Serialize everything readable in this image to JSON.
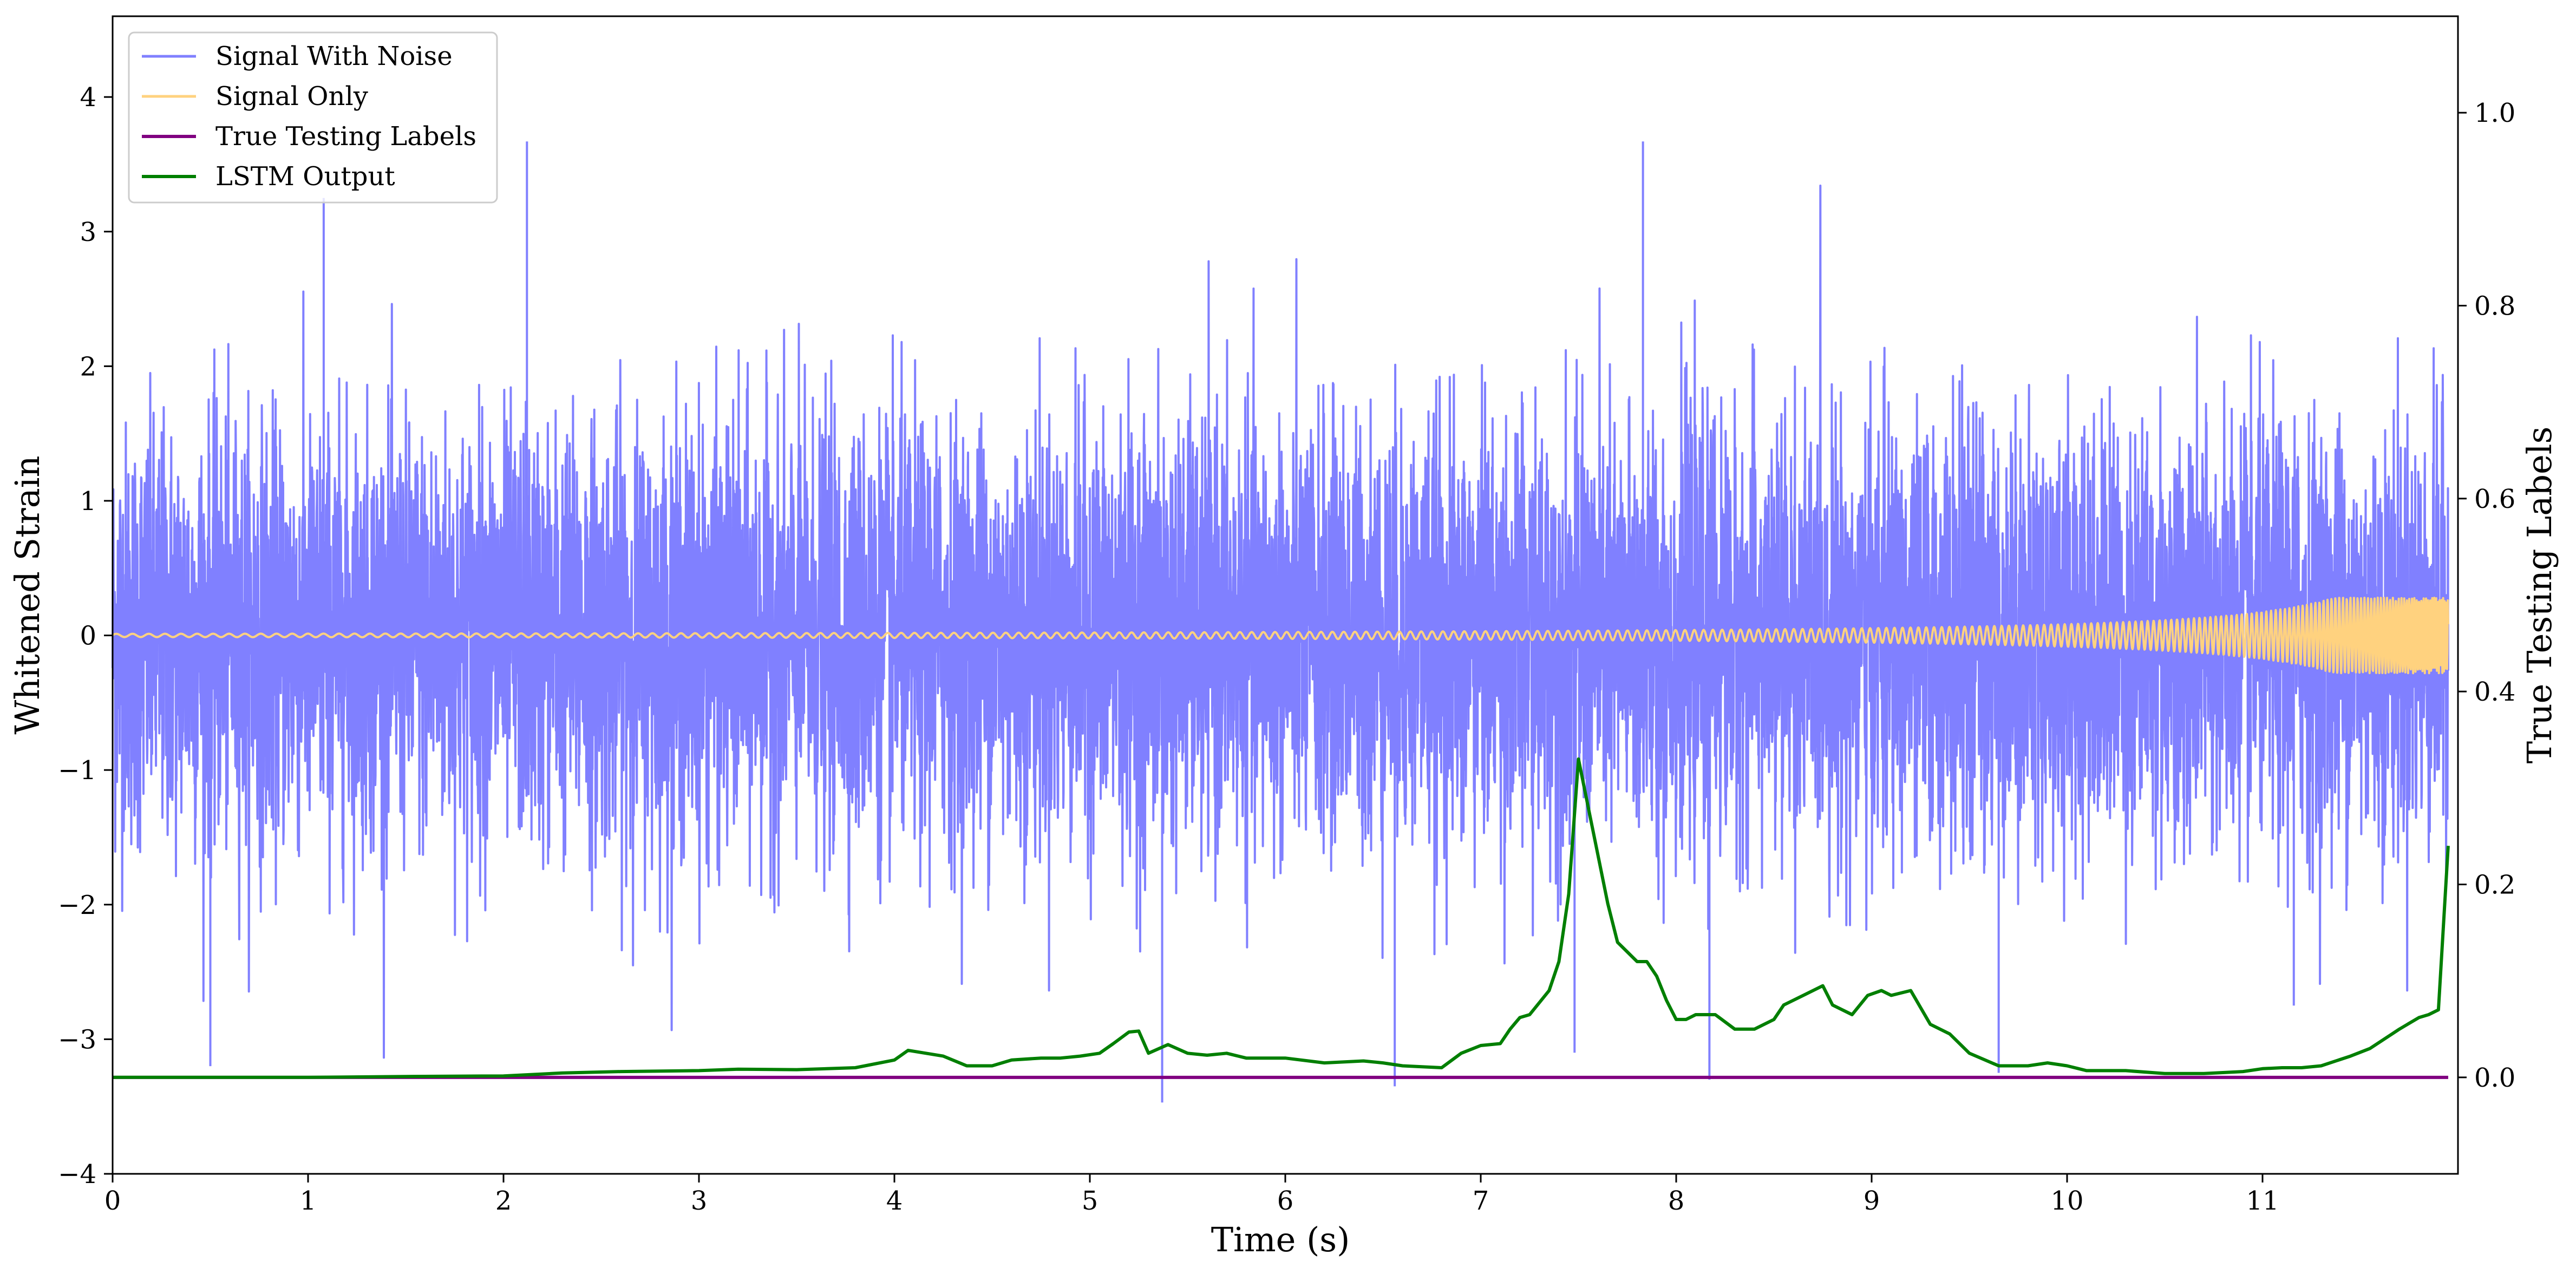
{
  "chart_data": {
    "type": "line",
    "xlabel": "Time (s)",
    "ylabel": "Whitened Strain",
    "y2label": "True Testing Labels",
    "xlim": [
      0,
      12
    ],
    "ylim": [
      -4,
      4.6
    ],
    "y2lim": [
      -0.1,
      1.1
    ],
    "x_ticks": [
      0,
      1,
      2,
      3,
      4,
      5,
      6,
      7,
      8,
      9,
      10,
      11
    ],
    "x_tick_labels": [
      "0",
      "1",
      "2",
      "3",
      "4",
      "5",
      "6",
      "7",
      "8",
      "9",
      "10",
      "11"
    ],
    "y_ticks": [
      -4,
      -3,
      -2,
      -1,
      0,
      1,
      2,
      3,
      4
    ],
    "y_tick_labels": [
      "−4",
      "−3",
      "−2",
      "−1",
      "0",
      "1",
      "2",
      "3",
      "4"
    ],
    "y2_ticks": [
      0.0,
      0.2,
      0.4,
      0.6,
      0.8,
      1.0
    ],
    "y2_tick_labels": [
      "0.0",
      "0.2",
      "0.4",
      "0.6",
      "0.8",
      "1.0"
    ],
    "grid": false,
    "legend_position": "top-left",
    "series": [
      {
        "name": "Signal With Noise",
        "axis": "left",
        "color": "#8080ff",
        "description_shape": "dense whitened noise around 0, amplitude mostly within -2.5..2.5",
        "max": 3.67,
        "min": -3.47
      },
      {
        "name": "Signal Only",
        "axis": "left",
        "color": "#ffd27f",
        "description_shape": "chirp oscillation around 0 with amplitude growing toward the end",
        "max_amplitude": 0.28
      },
      {
        "name": "True Testing Labels",
        "axis": "right",
        "color": "#800080",
        "x": [
          0,
          11.95
        ],
        "y": [
          0.0,
          0.0
        ]
      },
      {
        "name": "LSTM Output",
        "axis": "right",
        "color": "#007f00",
        "x": [
          0,
          0.5,
          1,
          1.5,
          2,
          2.3,
          2.6,
          3.0,
          3.2,
          3.5,
          3.8,
          4.0,
          4.07,
          4.25,
          4.37,
          4.5,
          4.6,
          4.75,
          4.85,
          4.95,
          5.05,
          5.12,
          5.2,
          5.25,
          5.3,
          5.4,
          5.5,
          5.6,
          5.7,
          5.8,
          6.0,
          6.2,
          6.4,
          6.5,
          6.6,
          6.8,
          6.9,
          7.0,
          7.1,
          7.15,
          7.2,
          7.25,
          7.35,
          7.4,
          7.45,
          7.5,
          7.53,
          7.58,
          7.65,
          7.7,
          7.75,
          7.8,
          7.85,
          7.9,
          7.95,
          8.0,
          8.05,
          8.1,
          8.2,
          8.3,
          8.4,
          8.5,
          8.55,
          8.65,
          8.75,
          8.8,
          8.9,
          8.98,
          9.05,
          9.1,
          9.2,
          9.3,
          9.4,
          9.5,
          9.65,
          9.8,
          9.9,
          10.0,
          10.1,
          10.3,
          10.5,
          10.7,
          10.9,
          11.0,
          11.1,
          11.2,
          11.3,
          11.45,
          11.55,
          11.7,
          11.8,
          11.85,
          11.9,
          11.95
        ],
        "y": [
          0.0,
          0.0,
          0.0,
          0.0009,
          0.0015,
          0.0045,
          0.006,
          0.007,
          0.0085,
          0.008,
          0.01,
          0.018,
          0.028,
          0.022,
          0.012,
          0.012,
          0.018,
          0.02,
          0.02,
          0.022,
          0.025,
          0.035,
          0.047,
          0.048,
          0.025,
          0.034,
          0.025,
          0.023,
          0.025,
          0.02,
          0.02,
          0.015,
          0.017,
          0.015,
          0.012,
          0.01,
          0.025,
          0.033,
          0.035,
          0.05,
          0.062,
          0.065,
          0.09,
          0.12,
          0.19,
          0.33,
          0.3,
          0.25,
          0.18,
          0.14,
          0.13,
          0.12,
          0.12,
          0.105,
          0.08,
          0.06,
          0.06,
          0.065,
          0.065,
          0.05,
          0.05,
          0.06,
          0.075,
          0.085,
          0.095,
          0.075,
          0.065,
          0.085,
          0.09,
          0.085,
          0.09,
          0.055,
          0.045,
          0.025,
          0.012,
          0.012,
          0.015,
          0.012,
          0.007,
          0.007,
          0.004,
          0.004,
          0.006,
          0.009,
          0.01,
          0.01,
          0.012,
          0.022,
          0.03,
          0.05,
          0.062,
          0.065,
          0.07,
          0.24
        ]
      }
    ]
  }
}
